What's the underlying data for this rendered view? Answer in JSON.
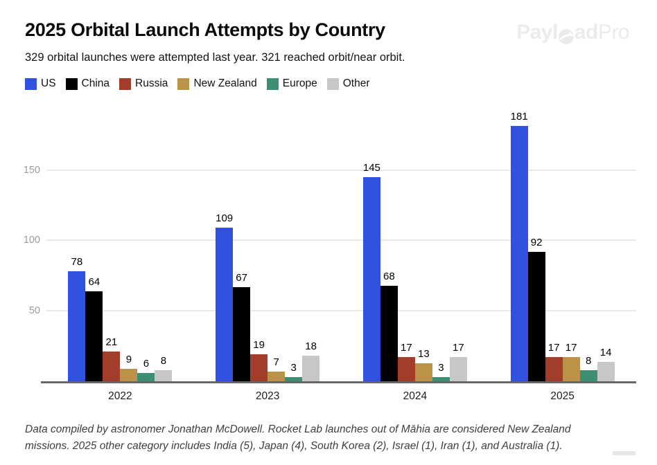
{
  "header": {
    "title": "2025 Orbital Launch Attempts by Country",
    "subtitle": "329 orbital launches were attempted last year. 321 reached orbit/near orbit.",
    "logo": {
      "prefix": "Payl",
      "suffix": "ad",
      "pro": "Pro",
      "color": "#ebebeb"
    }
  },
  "chart_data": {
    "type": "bar",
    "title": "2025 Orbital Launch Attempts by Country",
    "xlabel": "",
    "ylabel": "",
    "categories": [
      "2022",
      "2023",
      "2024",
      "2025"
    ],
    "series": [
      {
        "name": "US",
        "color": "#3151E1",
        "values": [
          78,
          109,
          145,
          181
        ]
      },
      {
        "name": "China",
        "color": "#000000",
        "values": [
          64,
          67,
          68,
          92
        ]
      },
      {
        "name": "Russia",
        "color": "#A23C2B",
        "values": [
          21,
          19,
          17,
          17
        ]
      },
      {
        "name": "New Zealand",
        "color": "#BC9249",
        "values": [
          9,
          7,
          13,
          17
        ]
      },
      {
        "name": "Europe",
        "color": "#3C8F72",
        "values": [
          6,
          3,
          3,
          8
        ]
      },
      {
        "name": "Other",
        "color": "#C7C7C7",
        "values": [
          8,
          18,
          17,
          14
        ]
      }
    ],
    "y_ticks": [
      50,
      100,
      150
    ],
    "ylim": [
      0,
      193
    ],
    "grid": true,
    "legend_position": "top",
    "value_labels": true
  },
  "footer": {
    "lines": [
      "Data compiled by astronomer Jonathan McDowell. Rocket Lab launches out of Māhia are considered New Zealand",
      "missions. 2025 other category includes India (5), Japan (4), South Korea (2), Israel (1), Iran (1), and Australia (1)."
    ]
  },
  "colors": {
    "axis": "#666666",
    "grid": "#e9e9e9",
    "y_tick_label": "#9a9a9a",
    "x_label": "#1c1c1c"
  }
}
